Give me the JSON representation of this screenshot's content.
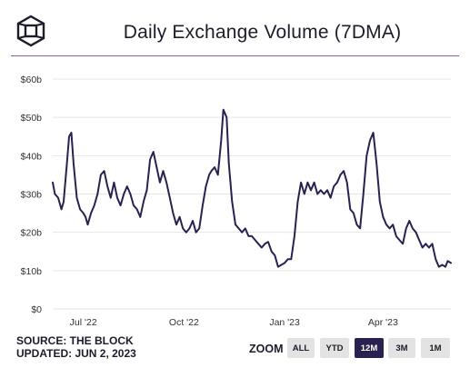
{
  "header": {
    "logo_icon": "cube-logo-icon",
    "title": "Daily Exchange Volume (7DMA)"
  },
  "colors": {
    "line": "#2a2150",
    "rule": "#8e5aa6",
    "grid": "#e6e6e6",
    "active_button": "#2a2150"
  },
  "chart_data": {
    "type": "line",
    "title": "Daily Exchange Volume (7DMA)",
    "xlabel": "",
    "ylabel": "",
    "y_unit": "billions USD",
    "ylim": [
      0,
      60
    ],
    "y_ticks": [
      {
        "value": 0,
        "label": "$0"
      },
      {
        "value": 10,
        "label": "$10b"
      },
      {
        "value": 20,
        "label": "$20b"
      },
      {
        "value": 30,
        "label": "$30b"
      },
      {
        "value": 40,
        "label": "$40b"
      },
      {
        "value": 50,
        "label": "$50b"
      },
      {
        "value": 60,
        "label": "$60b"
      }
    ],
    "x_range": [
      "2022-06-03",
      "2023-06-02"
    ],
    "x_ticks": [
      {
        "date": "2022-07-01",
        "label": "Jul '22"
      },
      {
        "date": "2022-10-01",
        "label": "Oct '22"
      },
      {
        "date": "2023-01-01",
        "label": "Jan '23"
      },
      {
        "date": "2023-04-01",
        "label": "Apr '23"
      }
    ],
    "grid": {
      "horizontal": true,
      "vertical": false
    },
    "legend": "none",
    "series": [
      {
        "values": [
          [
            "2022-06-03",
            33
          ],
          [
            "2022-06-05",
            30
          ],
          [
            "2022-06-08",
            29
          ],
          [
            "2022-06-11",
            26
          ],
          [
            "2022-06-13",
            28
          ],
          [
            "2022-06-16",
            38
          ],
          [
            "2022-06-18",
            45
          ],
          [
            "2022-06-20",
            46
          ],
          [
            "2022-06-22",
            38
          ],
          [
            "2022-06-25",
            29
          ],
          [
            "2022-06-28",
            26
          ],
          [
            "2022-07-01",
            25
          ],
          [
            "2022-07-03",
            24
          ],
          [
            "2022-07-05",
            22
          ],
          [
            "2022-07-08",
            25
          ],
          [
            "2022-07-11",
            27
          ],
          [
            "2022-07-14",
            30
          ],
          [
            "2022-07-17",
            35
          ],
          [
            "2022-07-20",
            36
          ],
          [
            "2022-07-23",
            32
          ],
          [
            "2022-07-26",
            29
          ],
          [
            "2022-07-29",
            33
          ],
          [
            "2022-08-01",
            29
          ],
          [
            "2022-08-04",
            27
          ],
          [
            "2022-08-07",
            30
          ],
          [
            "2022-08-10",
            32
          ],
          [
            "2022-08-13",
            30
          ],
          [
            "2022-08-16",
            27
          ],
          [
            "2022-08-19",
            26
          ],
          [
            "2022-08-22",
            24
          ],
          [
            "2022-08-25",
            28
          ],
          [
            "2022-08-28",
            31
          ],
          [
            "2022-08-31",
            39
          ],
          [
            "2022-09-03",
            41
          ],
          [
            "2022-09-06",
            37
          ],
          [
            "2022-09-09",
            33
          ],
          [
            "2022-09-12",
            36
          ],
          [
            "2022-09-15",
            33
          ],
          [
            "2022-09-18",
            29
          ],
          [
            "2022-09-21",
            25
          ],
          [
            "2022-09-24",
            22
          ],
          [
            "2022-09-27",
            24
          ],
          [
            "2022-09-30",
            21
          ],
          [
            "2022-10-03",
            20
          ],
          [
            "2022-10-06",
            21
          ],
          [
            "2022-10-09",
            23
          ],
          [
            "2022-10-12",
            20
          ],
          [
            "2022-10-15",
            21
          ],
          [
            "2022-10-18",
            27
          ],
          [
            "2022-10-21",
            32
          ],
          [
            "2022-10-24",
            35
          ],
          [
            "2022-10-26",
            36
          ],
          [
            "2022-10-29",
            37
          ],
          [
            "2022-11-01",
            35
          ],
          [
            "2022-11-04",
            44
          ],
          [
            "2022-11-06",
            52
          ],
          [
            "2022-11-09",
            50
          ],
          [
            "2022-11-11",
            38
          ],
          [
            "2022-11-14",
            28
          ],
          [
            "2022-11-17",
            22
          ],
          [
            "2022-11-20",
            21
          ],
          [
            "2022-11-23",
            20
          ],
          [
            "2022-11-26",
            21
          ],
          [
            "2022-11-29",
            19
          ],
          [
            "2022-12-02",
            19
          ],
          [
            "2022-12-05",
            18
          ],
          [
            "2022-12-08",
            17
          ],
          [
            "2022-12-11",
            16
          ],
          [
            "2022-12-14",
            17
          ],
          [
            "2022-12-17",
            17.5
          ],
          [
            "2022-12-20",
            15
          ],
          [
            "2022-12-23",
            14
          ],
          [
            "2022-12-26",
            11
          ],
          [
            "2022-12-29",
            11.5
          ],
          [
            "2023-01-01",
            12
          ],
          [
            "2023-01-04",
            13
          ],
          [
            "2023-01-07",
            13
          ],
          [
            "2023-01-10",
            19
          ],
          [
            "2023-01-13",
            28
          ],
          [
            "2023-01-16",
            33
          ],
          [
            "2023-01-19",
            30
          ],
          [
            "2023-01-22",
            33
          ],
          [
            "2023-01-25",
            31
          ],
          [
            "2023-01-28",
            33
          ],
          [
            "2023-01-31",
            30
          ],
          [
            "2023-02-03",
            31
          ],
          [
            "2023-02-06",
            30
          ],
          [
            "2023-02-09",
            31
          ],
          [
            "2023-02-12",
            29
          ],
          [
            "2023-02-15",
            32
          ],
          [
            "2023-02-18",
            33
          ],
          [
            "2023-02-21",
            35
          ],
          [
            "2023-02-24",
            36
          ],
          [
            "2023-02-27",
            33
          ],
          [
            "2023-03-02",
            26
          ],
          [
            "2023-03-05",
            25
          ],
          [
            "2023-03-08",
            22
          ],
          [
            "2023-03-11",
            21
          ],
          [
            "2023-03-14",
            30
          ],
          [
            "2023-03-17",
            40
          ],
          [
            "2023-03-20",
            44
          ],
          [
            "2023-03-23",
            46
          ],
          [
            "2023-03-26",
            38
          ],
          [
            "2023-03-29",
            28
          ],
          [
            "2023-04-01",
            24
          ],
          [
            "2023-04-04",
            22
          ],
          [
            "2023-04-07",
            21
          ],
          [
            "2023-04-10",
            22
          ],
          [
            "2023-04-13",
            19
          ],
          [
            "2023-04-16",
            18
          ],
          [
            "2023-04-19",
            17
          ],
          [
            "2023-04-22",
            21
          ],
          [
            "2023-04-25",
            23
          ],
          [
            "2023-04-28",
            21
          ],
          [
            "2023-05-01",
            20
          ],
          [
            "2023-05-04",
            18
          ],
          [
            "2023-05-07",
            16
          ],
          [
            "2023-05-10",
            17
          ],
          [
            "2023-05-13",
            16
          ],
          [
            "2023-05-16",
            17
          ],
          [
            "2023-05-19",
            13
          ],
          [
            "2023-05-22",
            11
          ],
          [
            "2023-05-25",
            11.5
          ],
          [
            "2023-05-28",
            11
          ],
          [
            "2023-05-30",
            12.5
          ],
          [
            "2023-06-02",
            12
          ]
        ]
      }
    ]
  },
  "footer": {
    "source": "SOURCE: THE BLOCK",
    "updated": "UPDATED: JUN 2, 2023"
  },
  "zoom": {
    "label": "ZOOM",
    "buttons": [
      {
        "label": "ALL",
        "active": false
      },
      {
        "label": "YTD",
        "active": false
      },
      {
        "label": "12M",
        "active": true
      },
      {
        "label": "3M",
        "active": false
      },
      {
        "label": "1M",
        "active": false
      }
    ]
  }
}
